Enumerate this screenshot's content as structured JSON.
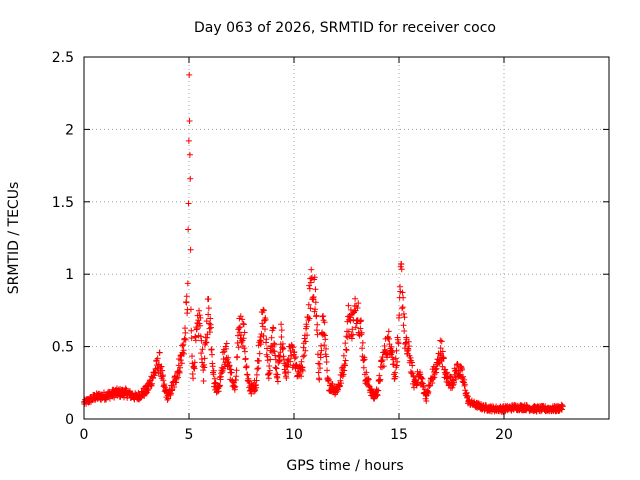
{
  "chart_data": {
    "type": "scatter",
    "title": "Day 063 of 2026, SRMTID for receiver coco",
    "xlabel": "GPS time / hours",
    "ylabel": "SRMTID / TECUs",
    "xlim": [
      0,
      25
    ],
    "ylim": [
      0,
      2.5
    ],
    "xticks": [
      0,
      5,
      10,
      15,
      20
    ],
    "xtick_labels": [
      "0",
      "5",
      "10",
      "15",
      "20"
    ],
    "yticks": [
      0,
      0.5,
      1,
      1.5,
      2,
      2.5
    ],
    "ytick_labels": [
      "0",
      "0.5",
      "1",
      "1.5",
      "2",
      "2.5"
    ],
    "grid": true,
    "marker": "+",
    "color": "#ff0000",
    "point_interval_hours": 0.0167,
    "series": [
      {
        "name": "SRMTID",
        "envelope": {
          "hours": [
            0.0,
            0.5,
            1.0,
            1.5,
            2.0,
            2.5,
            3.0,
            3.3,
            3.6,
            3.8,
            4.0,
            4.3,
            4.6,
            4.8,
            4.95,
            5.0,
            5.05,
            5.1,
            5.2,
            5.3,
            5.5,
            5.7,
            5.9,
            6.0,
            6.2,
            6.4,
            6.6,
            6.8,
            7.0,
            7.2,
            7.4,
            7.6,
            7.8,
            8.0,
            8.2,
            8.4,
            8.6,
            8.8,
            9.0,
            9.2,
            9.4,
            9.6,
            9.8,
            10.0,
            10.2,
            10.4,
            10.6,
            10.8,
            11.0,
            11.2,
            11.4,
            11.6,
            11.8,
            12.0,
            12.2,
            12.4,
            12.6,
            12.8,
            13.0,
            13.2,
            13.4,
            13.6,
            13.8,
            14.0,
            14.2,
            14.4,
            14.6,
            14.8,
            15.0,
            15.1,
            15.2,
            15.3,
            15.5,
            15.7,
            16.0,
            16.3,
            16.6,
            16.8,
            17.0,
            17.2,
            17.5,
            17.8,
            18.0,
            18.3,
            18.6,
            19.0,
            19.5,
            20.0,
            20.5,
            21.0,
            21.5,
            22.0,
            22.5,
            22.8
          ],
          "values": [
            0.11,
            0.15,
            0.16,
            0.18,
            0.18,
            0.15,
            0.2,
            0.3,
            0.4,
            0.22,
            0.15,
            0.25,
            0.4,
            0.55,
            0.9,
            2.1,
            1.8,
            0.6,
            0.3,
            0.5,
            0.7,
            0.3,
            0.75,
            0.7,
            0.25,
            0.2,
            0.4,
            0.45,
            0.3,
            0.2,
            0.65,
            0.6,
            0.25,
            0.2,
            0.25,
            0.6,
            0.7,
            0.3,
            0.6,
            0.25,
            0.6,
            0.3,
            0.45,
            0.42,
            0.3,
            0.35,
            0.65,
            0.9,
            0.85,
            0.3,
            0.7,
            0.25,
            0.22,
            0.2,
            0.25,
            0.4,
            0.7,
            0.65,
            0.8,
            0.6,
            0.3,
            0.22,
            0.15,
            0.2,
            0.4,
            0.5,
            0.55,
            0.3,
            0.6,
            1.0,
            0.8,
            0.5,
            0.45,
            0.25,
            0.3,
            0.15,
            0.3,
            0.35,
            0.5,
            0.3,
            0.25,
            0.35,
            0.3,
            0.12,
            0.1,
            0.08,
            0.07,
            0.07,
            0.08,
            0.08,
            0.07,
            0.07,
            0.07,
            0.08
          ]
        }
      }
    ]
  }
}
